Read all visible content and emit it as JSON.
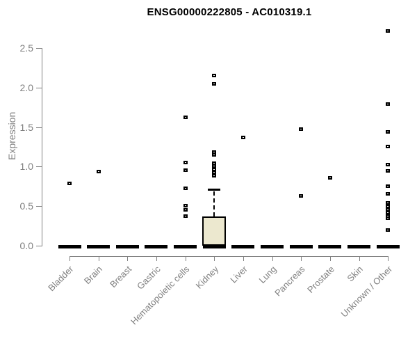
{
  "header": {
    "title": "ENSG00000222805 - AC010319.1"
  },
  "chart_data": {
    "type": "boxplot",
    "title": "ENSG00000222805 - AC010319.1",
    "xlabel": "",
    "ylabel": "Expression",
    "ylim": [
      0,
      2.72
    ],
    "y_ticks": [
      "0.0",
      "0.5",
      "1.0",
      "1.5",
      "2.0",
      "2.5"
    ],
    "grid": false,
    "legend": false,
    "categories": [
      "Bladder",
      "Brain",
      "Breast",
      "Gastric",
      "Hematopoietic cells",
      "Kidney",
      "Liver",
      "Lung",
      "Pancreas",
      "Prostate",
      "Skin",
      "Unknown / Other"
    ],
    "boxes": [
      {
        "category": "Bladder",
        "median": 0,
        "q1": 0,
        "q3": 0,
        "whisker_low": 0,
        "whisker_high": 0,
        "outliers": [
          0.79
        ]
      },
      {
        "category": "Brain",
        "median": 0,
        "q1": 0,
        "q3": 0,
        "whisker_low": 0,
        "whisker_high": 0,
        "outliers": [
          0.94
        ]
      },
      {
        "category": "Breast",
        "median": 0,
        "q1": 0,
        "q3": 0,
        "whisker_low": 0,
        "whisker_high": 0,
        "outliers": []
      },
      {
        "category": "Gastric",
        "median": 0,
        "q1": 0,
        "q3": 0,
        "whisker_low": 0,
        "whisker_high": 0,
        "outliers": []
      },
      {
        "category": "Hematopoietic cells",
        "median": 0,
        "q1": 0,
        "q3": 0,
        "whisker_low": 0,
        "whisker_high": 0,
        "outliers": [
          1.63,
          1.06,
          0.96,
          0.73,
          0.51,
          0.46,
          0.38
        ]
      },
      {
        "category": "Kidney",
        "median": 0,
        "q1": 0,
        "q3": 0.37,
        "whisker_low": 0,
        "whisker_high": 0.71,
        "outliers": [
          2.16,
          2.05,
          1.19,
          1.15,
          1.05,
          1.01,
          0.97,
          0.93,
          0.89
        ]
      },
      {
        "category": "Liver",
        "median": 0,
        "q1": 0,
        "q3": 0,
        "whisker_low": 0,
        "whisker_high": 0,
        "outliers": [
          1.37
        ]
      },
      {
        "category": "Lung",
        "median": 0,
        "q1": 0,
        "q3": 0,
        "whisker_low": 0,
        "whisker_high": 0,
        "outliers": []
      },
      {
        "category": "Pancreas",
        "median": 0,
        "q1": 0,
        "q3": 0,
        "whisker_low": 0,
        "whisker_high": 0,
        "outliers": [
          1.48,
          0.63
        ]
      },
      {
        "category": "Prostate",
        "median": 0,
        "q1": 0,
        "q3": 0,
        "whisker_low": 0,
        "whisker_high": 0,
        "outliers": [
          0.86
        ]
      },
      {
        "category": "Skin",
        "median": 0,
        "q1": 0,
        "q3": 0,
        "whisker_low": 0,
        "whisker_high": 0,
        "outliers": []
      },
      {
        "category": "Unknown / Other",
        "median": 0,
        "q1": 0,
        "q3": 0,
        "whisker_low": 0,
        "whisker_high": 0,
        "outliers": [
          2.72,
          1.8,
          1.44,
          1.26,
          1.03,
          0.95,
          0.76,
          0.66,
          0.55,
          0.5,
          0.46,
          0.42,
          0.38,
          0.35,
          0.2
        ]
      }
    ],
    "colors": {
      "box_fill": "#ece8cf",
      "box_border": "#000000",
      "point_color": "#000000",
      "axis_color": "#808080",
      "label_color": "#808080",
      "title_color": "#000000"
    }
  }
}
